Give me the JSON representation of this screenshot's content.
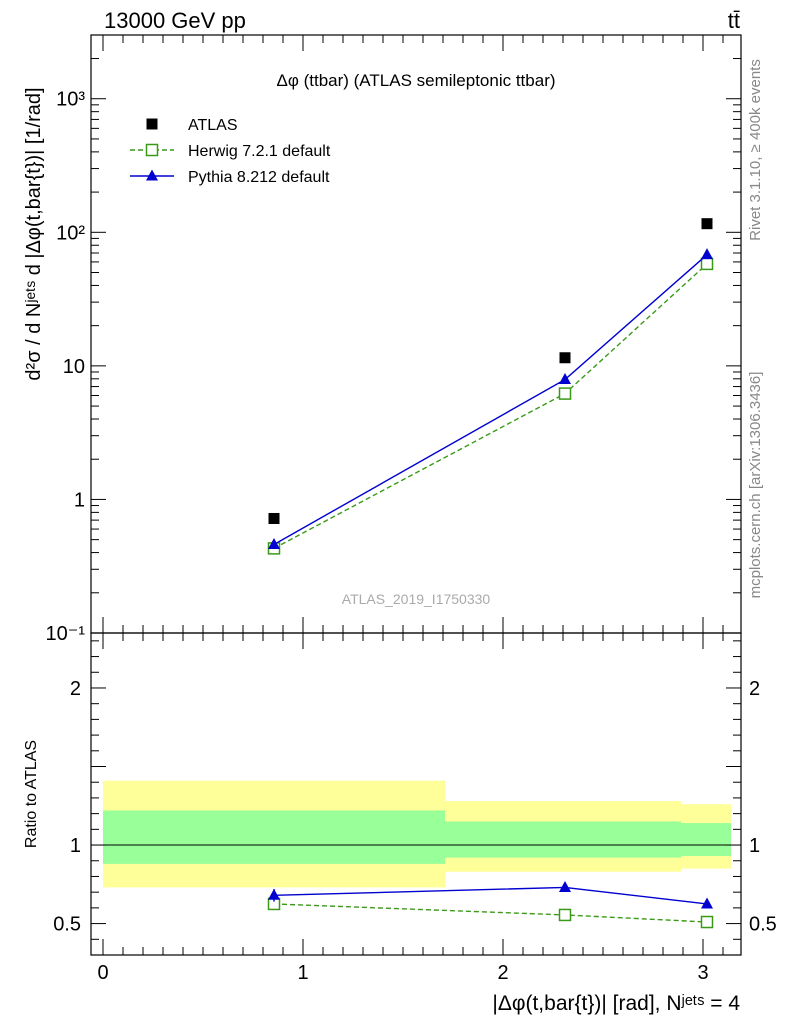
{
  "header": {
    "energy_label": "13000 GeV pp",
    "process_label": "tt̄"
  },
  "side_labels": {
    "rivet": "Rivet 3.1.10, ≥ 400k events",
    "mcplots": "mcplots.cern.ch [arXiv:1306.3436]"
  },
  "chart_data": [
    {
      "id": "main",
      "type": "scatter",
      "title": "Δφ (ttbar) (ATLAS semileptonic ttbar)",
      "watermark": "ATLAS_2019_I1750330",
      "ylabel": "d²σ / d Nʲᵉᵗˢ d |Δφ(t,bar{t})| [1/rad]",
      "xlabel": "",
      "yscale": "log",
      "ylim": [
        0.1,
        3000
      ],
      "xlim": [
        -0.1,
        3.2
      ],
      "y_ticks": [
        {
          "value": 0.1,
          "label": "10⁻¹"
        },
        {
          "value": 1,
          "label": "1"
        },
        {
          "value": 10,
          "label": "10"
        },
        {
          "value": 100,
          "label": "10²"
        },
        {
          "value": 1000,
          "label": "10³"
        }
      ],
      "legend_position": "top-left",
      "series": [
        {
          "name": "ATLAS",
          "marker": "filled-square",
          "line": "none",
          "color": "#000000",
          "x": [
            0.855,
            2.31,
            3.02
          ],
          "y": [
            0.72,
            11.5,
            116
          ]
        },
        {
          "name": "Herwig 7.2.1 default",
          "marker": "open-square",
          "line": "dashed",
          "color": "#3a9a18",
          "x": [
            0.855,
            2.31,
            3.02
          ],
          "y": [
            0.43,
            6.2,
            58
          ]
        },
        {
          "name": "Pythia 8.212 default",
          "marker": "filled-triangle",
          "line": "solid",
          "color": "#0000d0",
          "x": [
            0.855,
            2.31,
            3.02
          ],
          "y": [
            0.46,
            7.9,
            68
          ]
        }
      ]
    },
    {
      "id": "ratio",
      "type": "line",
      "ylabel": "Ratio to ATLAS",
      "xlabel": "|Δφ(t,bar{t})| [rad], Nʲᵉᵗˢ = 4",
      "ylim": [
        0.3,
        2.35
      ],
      "xlim": [
        -0.1,
        3.2
      ],
      "x_ticks": [
        {
          "value": 0,
          "label": "0"
        },
        {
          "value": 1,
          "label": "1"
        },
        {
          "value": 2,
          "label": "2"
        },
        {
          "value": 3,
          "label": "3"
        }
      ],
      "y_ticks": [
        {
          "value": 0.5,
          "label": "0.5"
        },
        {
          "value": 1,
          "label": "1"
        },
        {
          "value": 2,
          "label": "2"
        }
      ],
      "uncertainty_bands": [
        {
          "x_range": [
            0,
            1.71
          ],
          "outer": [
            0.73,
            1.41
          ],
          "inner": [
            0.88,
            1.22
          ]
        },
        {
          "x_range": [
            1.71,
            2.89
          ],
          "outer": [
            0.83,
            1.28
          ],
          "inner": [
            0.92,
            1.15
          ]
        },
        {
          "x_range": [
            2.89,
            3.14
          ],
          "outer": [
            0.85,
            1.26
          ],
          "inner": [
            0.93,
            1.14
          ]
        }
      ],
      "band_colors": {
        "outer": "#ffff99",
        "inner": "#99ff99"
      },
      "reference_line": 1,
      "series": [
        {
          "name": "Herwig 7.2.1 default",
          "marker": "open-square",
          "line": "dashed",
          "color": "#3a9a18",
          "x": [
            0.855,
            2.31,
            3.02
          ],
          "y": [
            0.625,
            0.555,
            0.51
          ]
        },
        {
          "name": "Pythia 8.212 default",
          "marker": "filled-triangle",
          "line": "solid",
          "color": "#0000d0",
          "x": [
            0.855,
            2.31,
            3.02
          ],
          "y": [
            0.68,
            0.73,
            0.625
          ],
          "y_err": [
            0.04,
            0,
            0
          ]
        }
      ]
    }
  ]
}
